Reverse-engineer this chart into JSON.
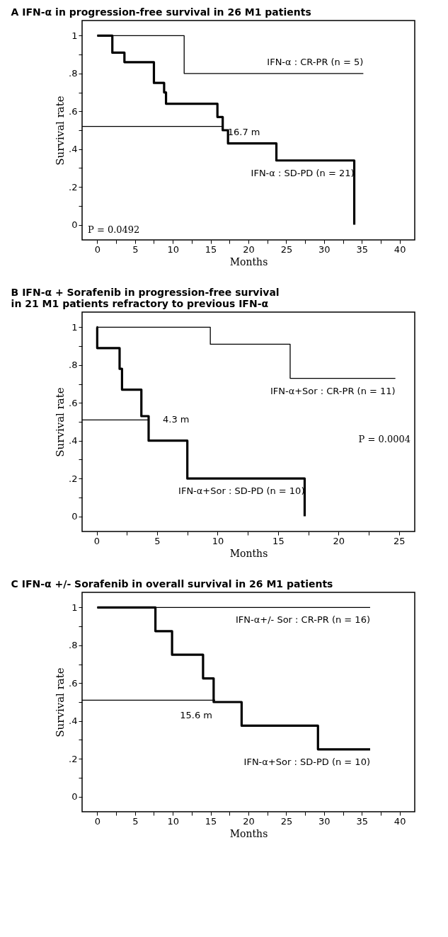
{
  "chart_data": [
    {
      "type": "step",
      "title": "A  IFN-α in progression-free survival in 26 M1 patients",
      "xlabel": "Months",
      "ylabel": "Survival rate",
      "series": [
        {
          "name": "IFN-α : CR-PR (n = 5)",
          "color": "#000000",
          "x": [
            0,
            11.5,
            35.2
          ],
          "values": [
            1,
            0.8,
            0.8
          ]
        },
        {
          "name": "IFN-α : SD-PD (n = 21)",
          "color": "#000000",
          "x": [
            0,
            2.0,
            3.6,
            7.5,
            8.85,
            9.1,
            15.9,
            16.6,
            17.3,
            23.7,
            34.0
          ],
          "values": [
            1,
            0.91,
            0.86,
            0.75,
            0.7,
            0.64,
            0.57,
            0.5,
            0.43,
            0.34,
            0
          ]
        },
        {
          "type": "line",
          "color": "#000000",
          "x": [
            -2,
            16.7
          ],
          "values": [
            0.52,
            0.52
          ]
        }
      ],
      "annotations": [
        {
          "text": "16.7 m",
          "x": 16.7,
          "y": 0.52
        },
        "P = 0.0492"
      ],
      "xlim": [
        -2,
        42
      ],
      "ylim": [
        -0.08,
        1.08
      ],
      "xticks": [
        0,
        {
          "value": 2.5,
          "label": null
        },
        5,
        {
          "value": 7.5,
          "label": null
        },
        10,
        {
          "value": 12.5,
          "label": null
        },
        15,
        {
          "value": 17.5,
          "label": null
        },
        20,
        {
          "value": 22.5,
          "label": null
        },
        25,
        {
          "value": 27.5,
          "label": null
        },
        30,
        {
          "value": 32.5,
          "label": null
        },
        35,
        {
          "value": 37.5,
          "label": null
        },
        40
      ],
      "yticks": [
        0,
        {
          "value": 0.1,
          "label": null
        },
        {
          "value": 0.2,
          "label": ".2"
        },
        {
          "value": 0.3,
          "label": null
        },
        {
          "value": 0.4,
          "label": ".4"
        },
        {
          "value": 0.5,
          "label": null
        },
        {
          "value": 0.6,
          "label": ".6"
        },
        {
          "value": 0.7,
          "label": null
        },
        {
          "value": 0.8,
          "label": ".8"
        },
        {
          "value": 0.9,
          "label": null
        },
        1
      ],
      "grid": false
    },
    {
      "type": "step",
      "title": "B  IFN-α + Sorafenib in progression-free survival\n    in 21 M1 patients refractory to previous IFN-α",
      "xlabel": "Months",
      "ylabel": "Survival rate",
      "series": [
        {
          "name": "IFN-α+Sor : CR-PR (n = 11)",
          "color": "#000000",
          "x": [
            0,
            9.4,
            16.0,
            24.7
          ],
          "values": [
            1,
            0.91,
            0.73,
            0.73
          ]
        },
        {
          "name": "IFN-α+Sor : SD-PD (n = 10)",
          "color": "#000000",
          "x": [
            0,
            0.05,
            1.9,
            2.1,
            3.7,
            4.3,
            7.5,
            17.2
          ],
          "values": [
            1,
            0.89,
            0.78,
            0.67,
            0.53,
            0.4,
            0.2,
            0
          ]
        },
        {
          "type": "line",
          "color": "#000000",
          "x": [
            -1.2,
            4.3
          ],
          "values": [
            0.51,
            0.51
          ]
        }
      ],
      "annotations": [
        {
          "text": "4.3 m",
          "x": 4.3,
          "y": 0.51
        },
        "P = 0.0004"
      ],
      "xlim": [
        -1.2,
        26.3
      ],
      "ylim": [
        -0.08,
        1.08
      ],
      "xticks": [
        0,
        {
          "value": 2.5,
          "label": null
        },
        5,
        {
          "value": 7.5,
          "label": null
        },
        10,
        {
          "value": 12.5,
          "label": null
        },
        15,
        {
          "value": 17.5,
          "label": null
        },
        20,
        {
          "value": 22.5,
          "label": null
        },
        25
      ],
      "yticks": [
        0,
        {
          "value": 0.1,
          "label": null
        },
        {
          "value": 0.2,
          "label": ".2"
        },
        {
          "value": 0.3,
          "label": null
        },
        {
          "value": 0.4,
          "label": ".4"
        },
        {
          "value": 0.5,
          "label": null
        },
        {
          "value": 0.6,
          "label": ".6"
        },
        {
          "value": 0.7,
          "label": null
        },
        {
          "value": 0.8,
          "label": ".8"
        },
        {
          "value": 0.9,
          "label": null
        },
        1
      ],
      "grid": false
    },
    {
      "type": "step",
      "title": "C  IFN-α +/- Sorafenib in overall survival in 26 M1 patients",
      "xlabel": "Months",
      "ylabel": "Survival rate",
      "series": [
        {
          "name": "IFN-α+/- Sor : CR-PR (n = 16)",
          "color": "#000000",
          "x": [
            0,
            36.1
          ],
          "values": [
            1,
            1
          ]
        },
        {
          "name": "IFN-α+Sor : SD-PD (n = 10)",
          "color": "#000000",
          "x": [
            0,
            7.7,
            9.9,
            14.0,
            15.4,
            19.1,
            29.2,
            36.1
          ],
          "values": [
            1,
            0.875,
            0.75,
            0.625,
            0.5,
            0.375,
            0.25,
            0.25
          ]
        },
        {
          "type": "line",
          "color": "#000000",
          "x": [
            -2,
            15.6
          ],
          "values": [
            0.51,
            0.51
          ]
        }
      ],
      "annotations": [
        {
          "text": "15.6 m",
          "x": 15.6,
          "y": 0.51
        }
      ],
      "xlim": [
        -2,
        42
      ],
      "ylim": [
        -0.08,
        1.08
      ],
      "xticks": [
        0,
        {
          "value": 2.5,
          "label": null
        },
        5,
        {
          "value": 7.5,
          "label": null
        },
        10,
        {
          "value": 12.5,
          "label": null
        },
        15,
        {
          "value": 17.5,
          "label": null
        },
        20,
        {
          "value": 22.5,
          "label": null
        },
        25,
        {
          "value": 27.5,
          "label": null
        },
        30,
        {
          "value": 32.5,
          "label": null
        },
        35,
        {
          "value": 37.5,
          "label": null
        },
        40
      ],
      "yticks": [
        0,
        {
          "value": 0.1,
          "label": null
        },
        {
          "value": 0.2,
          "label": ".2"
        },
        {
          "value": 0.3,
          "label": null
        },
        {
          "value": 0.4,
          "label": ".4"
        },
        {
          "value": 0.5,
          "label": null
        },
        {
          "value": 0.6,
          "label": ".6"
        },
        {
          "value": 0.7,
          "label": null
        },
        {
          "value": 0.8,
          "label": ".8"
        },
        {
          "value": 0.9,
          "label": null
        },
        1
      ],
      "grid": false
    }
  ]
}
